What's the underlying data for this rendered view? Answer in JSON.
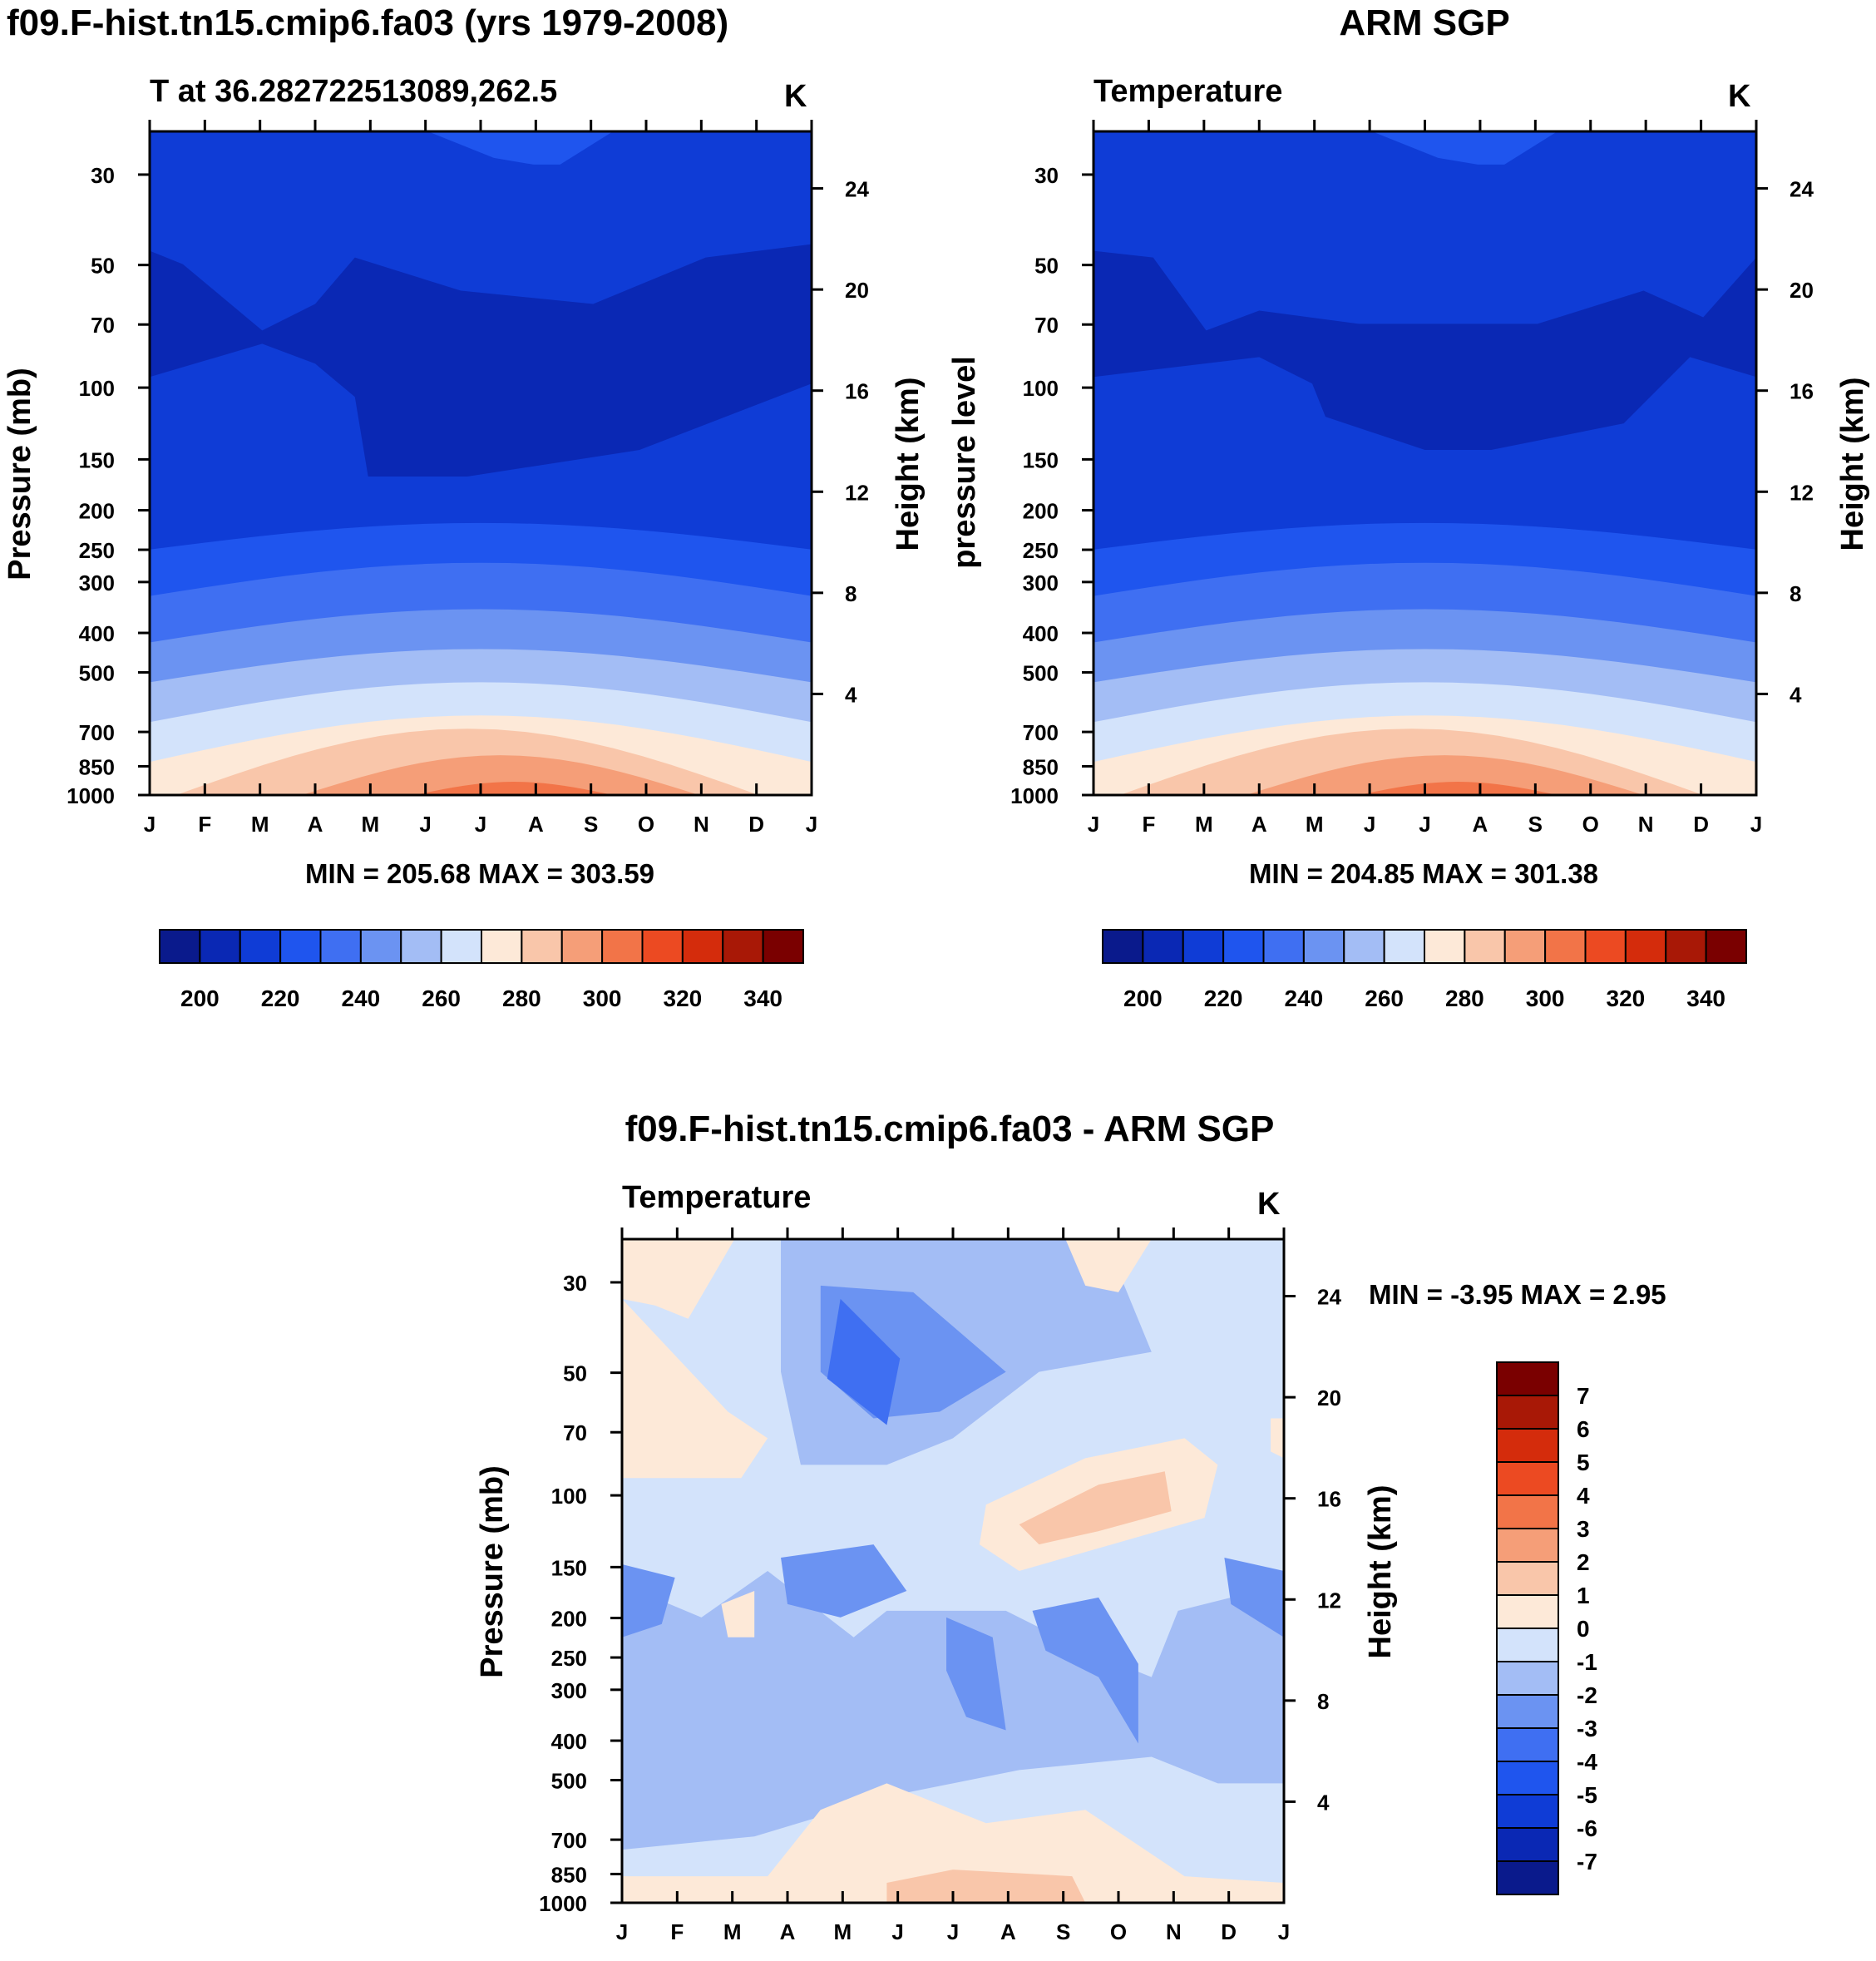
{
  "palette": {
    "temperature": [
      "#0a1a8c",
      "#0a28b4",
      "#0f3cd6",
      "#1f55ee",
      "#3f6ff2",
      "#6b93f2",
      "#a3bdf5",
      "#d3e3fb",
      "#fde9d8",
      "#f9c6aa",
      "#f59e78",
      "#f27448",
      "#ec4a22",
      "#d42c0c",
      "#a81806",
      "#7a0000"
    ],
    "difference": [
      "#0a1a8c",
      "#0a28b4",
      "#0f3cd6",
      "#1f55ee",
      "#3f6ff2",
      "#6b93f2",
      "#a3bdf5",
      "#d3e3fb",
      "#fde9d8",
      "#f9c6aa",
      "#f59e78",
      "#f27448",
      "#ec4a22",
      "#d42c0c",
      "#a81806",
      "#7a0000"
    ]
  },
  "panels": {
    "model": {
      "title": "f09.F-hist.tn15.cmip6.fa03 (yrs 1979-2008)",
      "left_string": "T at 36.282722513089,262.5",
      "right_string": "K",
      "ylabel": "Pressure (mb)",
      "y2label": "Height (km)",
      "minmax": "MIN = 205.68 MAX = 303.59"
    },
    "obs": {
      "title": "ARM SGP",
      "left_string": "Temperature",
      "right_string": "K",
      "ylabel": "pressure level",
      "y2label": "Height (km)",
      "minmax": "MIN = 204.85 MAX = 301.38"
    },
    "diff": {
      "title": "f09.F-hist.tn15.cmip6.fa03 - ARM SGP",
      "left_string": "Temperature",
      "right_string": "K",
      "ylabel": "Pressure (mb)",
      "y2label": "Height (km)",
      "minmax": "MIN =  -3.95 MAX =   2.95"
    }
  },
  "chart_data": [
    {
      "type": "heatmap",
      "title": "f09.F-hist.tn15.cmip6.fa03 (yrs 1979-2008)",
      "variable": "T at 36.282722513089,262.5",
      "units": "K",
      "x_ticks": [
        "J",
        "F",
        "M",
        "A",
        "M",
        "J",
        "J",
        "A",
        "S",
        "O",
        "N",
        "D",
        "J"
      ],
      "y_ticks": [
        30,
        50,
        70,
        100,
        150,
        200,
        250,
        300,
        400,
        500,
        700,
        850,
        1000
      ],
      "y2_ticks": [
        24,
        20,
        16,
        12,
        8,
        4
      ],
      "ylabel": "Pressure (mb)",
      "y2label": "Height (km)",
      "levels": [
        200,
        205,
        210,
        215,
        220,
        225,
        230,
        235,
        240,
        245,
        250,
        255,
        260,
        265,
        270,
        275,
        280,
        285,
        290,
        295,
        300,
        305,
        310,
        315,
        320,
        325,
        330,
        335,
        340,
        345
      ],
      "colorbar_labels": [
        200,
        220,
        240,
        260,
        280,
        300,
        320,
        340
      ],
      "min": 205.68,
      "max": 303.59
    },
    {
      "type": "heatmap",
      "title": "ARM SGP",
      "variable": "Temperature",
      "units": "K",
      "x_ticks": [
        "J",
        "F",
        "M",
        "A",
        "M",
        "J",
        "J",
        "A",
        "S",
        "O",
        "N",
        "D",
        "J"
      ],
      "y_ticks": [
        30,
        50,
        70,
        100,
        150,
        200,
        250,
        300,
        400,
        500,
        700,
        850,
        1000
      ],
      "y2_ticks": [
        24,
        20,
        16,
        12,
        8,
        4
      ],
      "ylabel": "pressure level",
      "y2label": "Height (km)",
      "colorbar_labels": [
        200,
        220,
        240,
        260,
        280,
        300,
        320,
        340
      ],
      "min": 204.85,
      "max": 301.38
    },
    {
      "type": "heatmap",
      "title": "f09.F-hist.tn15.cmip6.fa03 - ARM SGP",
      "variable": "Temperature",
      "units": "K",
      "x_ticks": [
        "J",
        "F",
        "M",
        "A",
        "M",
        "J",
        "J",
        "A",
        "S",
        "O",
        "N",
        "D",
        "J"
      ],
      "y_ticks": [
        30,
        50,
        70,
        100,
        150,
        200,
        250,
        300,
        400,
        500,
        700,
        850,
        1000
      ],
      "y2_ticks": [
        24,
        20,
        16,
        12,
        8,
        4
      ],
      "ylabel": "Pressure (mb)",
      "y2label": "Height (km)",
      "colorbar_labels": [
        7,
        6,
        5,
        4,
        3,
        2,
        1,
        0,
        -1,
        -2,
        -3,
        -4,
        -5,
        -6,
        -7
      ],
      "min": -3.95,
      "max": 2.95
    }
  ]
}
